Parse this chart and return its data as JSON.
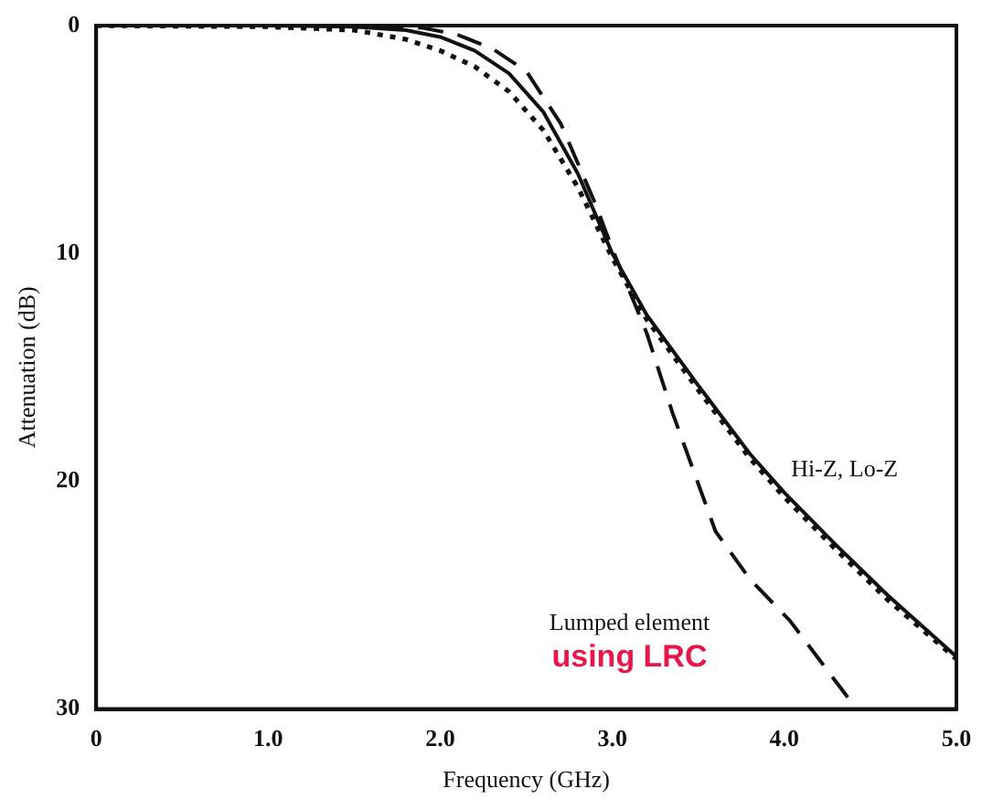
{
  "chart_data": {
    "type": "line",
    "xlabel": "Frequency (GHz)",
    "ylabel": "Attenuation (dB)",
    "xlim": [
      0,
      5
    ],
    "xticks": [
      0,
      {
        "value": 1,
        "label": "1.0"
      },
      {
        "value": 2,
        "label": "2.0"
      },
      {
        "value": 3,
        "label": "3.0"
      },
      {
        "value": 4,
        "label": "4.0"
      },
      {
        "value": 5,
        "label": "5.0"
      }
    ],
    "ylim": [
      30,
      0
    ],
    "yticks": [
      0,
      10,
      20,
      30
    ],
    "grid": false,
    "legend": false,
    "marker": "none",
    "series": [
      {
        "color": "#111111",
        "line_style": "solid",
        "x": [
          0,
          1,
          1.5,
          1.8,
          2.0,
          2.2,
          2.4,
          2.6,
          2.8,
          3.0,
          3.2,
          3.5,
          3.8,
          4.0,
          4.3,
          4.6,
          5.0
        ],
        "values": [
          0,
          0,
          0.05,
          0.2,
          0.5,
          1.1,
          2.1,
          3.8,
          6.5,
          10,
          12.7,
          15.8,
          18.8,
          20.5,
          22.8,
          25,
          27.7
        ]
      },
      {
        "color": "#111111",
        "line_style": "dotted",
        "x": [
          0,
          1,
          1.5,
          1.8,
          2.0,
          2.2,
          2.4,
          2.6,
          2.8,
          3.0,
          3.2,
          3.5,
          3.8,
          4.0,
          4.3,
          4.6,
          5.0
        ],
        "values": [
          0,
          0.05,
          0.2,
          0.6,
          1.1,
          1.8,
          2.9,
          4.6,
          7.1,
          10.2,
          12.9,
          16,
          19,
          20.7,
          23,
          25.2,
          27.8
        ]
      },
      {
        "color": "#111111",
        "line_style": "dashed",
        "x": [
          0,
          1.5,
          1.9,
          2.1,
          2.3,
          2.5,
          2.7,
          2.9,
          3.0,
          3.2,
          3.35,
          3.6,
          3.8,
          4.03,
          4.2,
          4.42
        ],
        "values": [
          0,
          0,
          0.1,
          0.4,
          1.0,
          2.0,
          4.3,
          7.8,
          9.8,
          13.5,
          17.0,
          22.2,
          24.3,
          26.1,
          27.8,
          30
        ]
      }
    ],
    "annotations": [
      "Hi-Z, Lo-Z",
      "Lumped element",
      "using LRC"
    ]
  }
}
